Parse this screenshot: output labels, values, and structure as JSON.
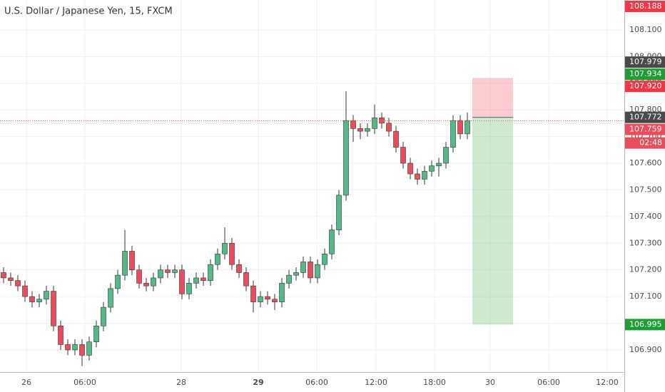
{
  "chart_data": {
    "type": "candlestick",
    "title": "U.S. Dollar / Japanese Yen, 15, FXCM",
    "open": [
      107.19,
      107.17,
      107.16,
      107.14,
      107.1,
      107.08,
      107.09,
      107.12,
      106.99,
      106.92,
      106.9,
      106.92,
      106.88,
      106.93,
      106.99,
      107.06,
      107.13,
      107.18,
      107.27,
      107.2,
      107.15,
      107.14,
      107.17,
      107.2,
      107.19,
      107.2,
      107.11,
      107.15,
      107.17,
      107.16,
      107.22,
      107.26,
      107.3,
      107.22,
      107.19,
      107.14,
      107.08,
      107.1,
      107.09,
      107.08,
      107.15,
      107.18,
      107.19,
      107.23,
      107.17,
      107.22,
      107.26,
      107.35,
      107.48,
      107.76,
      107.73,
      107.72,
      107.73,
      107.77,
      107.75,
      107.72,
      107.66,
      107.6,
      107.56,
      107.54,
      107.57,
      107.59,
      107.6,
      107.66,
      107.76,
      107.71
    ],
    "high": [
      107.21,
      107.19,
      107.18,
      107.16,
      107.12,
      107.11,
      107.14,
      107.14,
      107.01,
      106.94,
      106.94,
      106.94,
      106.95,
      107.01,
      107.08,
      107.15,
      107.2,
      107.35,
      107.29,
      107.22,
      107.17,
      107.19,
      107.22,
      107.22,
      107.22,
      107.22,
      107.17,
      107.19,
      107.19,
      107.24,
      107.28,
      107.36,
      107.32,
      107.24,
      107.21,
      107.16,
      107.12,
      107.12,
      107.11,
      107.17,
      107.2,
      107.21,
      107.25,
      107.25,
      107.24,
      107.28,
      107.37,
      107.5,
      107.87,
      107.78,
      107.75,
      107.75,
      107.82,
      107.79,
      107.77,
      107.74,
      107.68,
      107.62,
      107.58,
      107.59,
      107.61,
      107.62,
      107.68,
      107.78,
      107.78,
      107.79
    ],
    "low": [
      107.15,
      107.14,
      107.12,
      107.08,
      107.06,
      107.06,
      107.07,
      106.97,
      106.9,
      106.88,
      106.88,
      106.84,
      106.86,
      106.91,
      106.97,
      107.04,
      107.11,
      107.16,
      107.18,
      107.13,
      107.12,
      107.12,
      107.15,
      107.17,
      107.17,
      107.09,
      107.09,
      107.13,
      107.14,
      107.14,
      107.2,
      107.24,
      107.2,
      107.17,
      107.12,
      107.04,
      107.06,
      107.07,
      107.05,
      107.06,
      107.13,
      107.16,
      107.17,
      107.15,
      107.15,
      107.2,
      107.24,
      107.33,
      107.46,
      107.68,
      107.69,
      107.7,
      107.71,
      107.73,
      107.7,
      107.64,
      107.58,
      107.54,
      107.52,
      107.52,
      107.55,
      107.55,
      107.58,
      107.64,
      107.69,
      107.69
    ],
    "close": [
      107.17,
      107.16,
      107.14,
      107.1,
      107.08,
      107.09,
      107.12,
      106.99,
      106.92,
      106.9,
      106.92,
      106.88,
      106.93,
      106.99,
      107.06,
      107.13,
      107.18,
      107.27,
      107.2,
      107.15,
      107.14,
      107.17,
      107.2,
      107.19,
      107.2,
      107.11,
      107.15,
      107.17,
      107.16,
      107.22,
      107.26,
      107.3,
      107.22,
      107.19,
      107.14,
      107.08,
      107.1,
      107.09,
      107.08,
      107.15,
      107.18,
      107.19,
      107.23,
      107.17,
      107.22,
      107.26,
      107.35,
      107.48,
      107.76,
      107.73,
      107.72,
      107.73,
      107.77,
      107.75,
      107.72,
      107.66,
      107.6,
      107.56,
      107.54,
      107.57,
      107.59,
      107.6,
      107.66,
      107.76,
      107.71,
      107.76
    ],
    "up_color": "#53b987",
    "down_color": "#eb4d5c",
    "x_labels": [
      "26",
      "06:00",
      "28",
      "29",
      "06:00",
      "12:00",
      "18:00",
      "30",
      "06:00",
      "12:00"
    ],
    "ylim": [
      106.817,
      108.212
    ],
    "yticks": [
      {
        "value": 106.9,
        "label": "106.900"
      },
      {
        "value": 107.0,
        "label": "107.000"
      },
      {
        "value": 107.1,
        "label": "107.100"
      },
      {
        "value": 107.2,
        "label": "107.200"
      },
      {
        "value": 107.3,
        "label": "107.300"
      },
      {
        "value": 107.4,
        "label": "107.400"
      },
      {
        "value": 107.5,
        "label": "107.500"
      },
      {
        "value": 107.6,
        "label": "107.600"
      },
      {
        "value": 107.7,
        "label": "107.700"
      },
      {
        "value": 107.8,
        "label": "107.800"
      },
      {
        "value": 107.9,
        "label": "107.900"
      },
      {
        "value": 108.0,
        "label": "108.000"
      },
      {
        "value": 108.1,
        "label": "108.100"
      }
    ],
    "grid": true,
    "position": {
      "stop": 107.92,
      "entry": 107.772,
      "target": 106.995
    },
    "current_price": 107.759,
    "price_labels": [
      {
        "value": 108.188,
        "label": "108.188",
        "color": "#f23645"
      },
      {
        "value": 107.979,
        "label": "107.979",
        "color": "#4a4a4a"
      },
      {
        "value": 107.934,
        "label": "107.934",
        "color": "#1e9d33"
      },
      {
        "value": 107.92,
        "label": "107.920",
        "color": "#f23645"
      },
      {
        "value": 107.772,
        "label": "107.772",
        "color": "#4a4a4a"
      },
      {
        "value": 107.759,
        "label": "107.759",
        "color": "#eb4d5c"
      },
      {
        "value": 106.995,
        "label": "106.995",
        "color": "#1e9d33"
      }
    ],
    "countdown": "02:48"
  }
}
